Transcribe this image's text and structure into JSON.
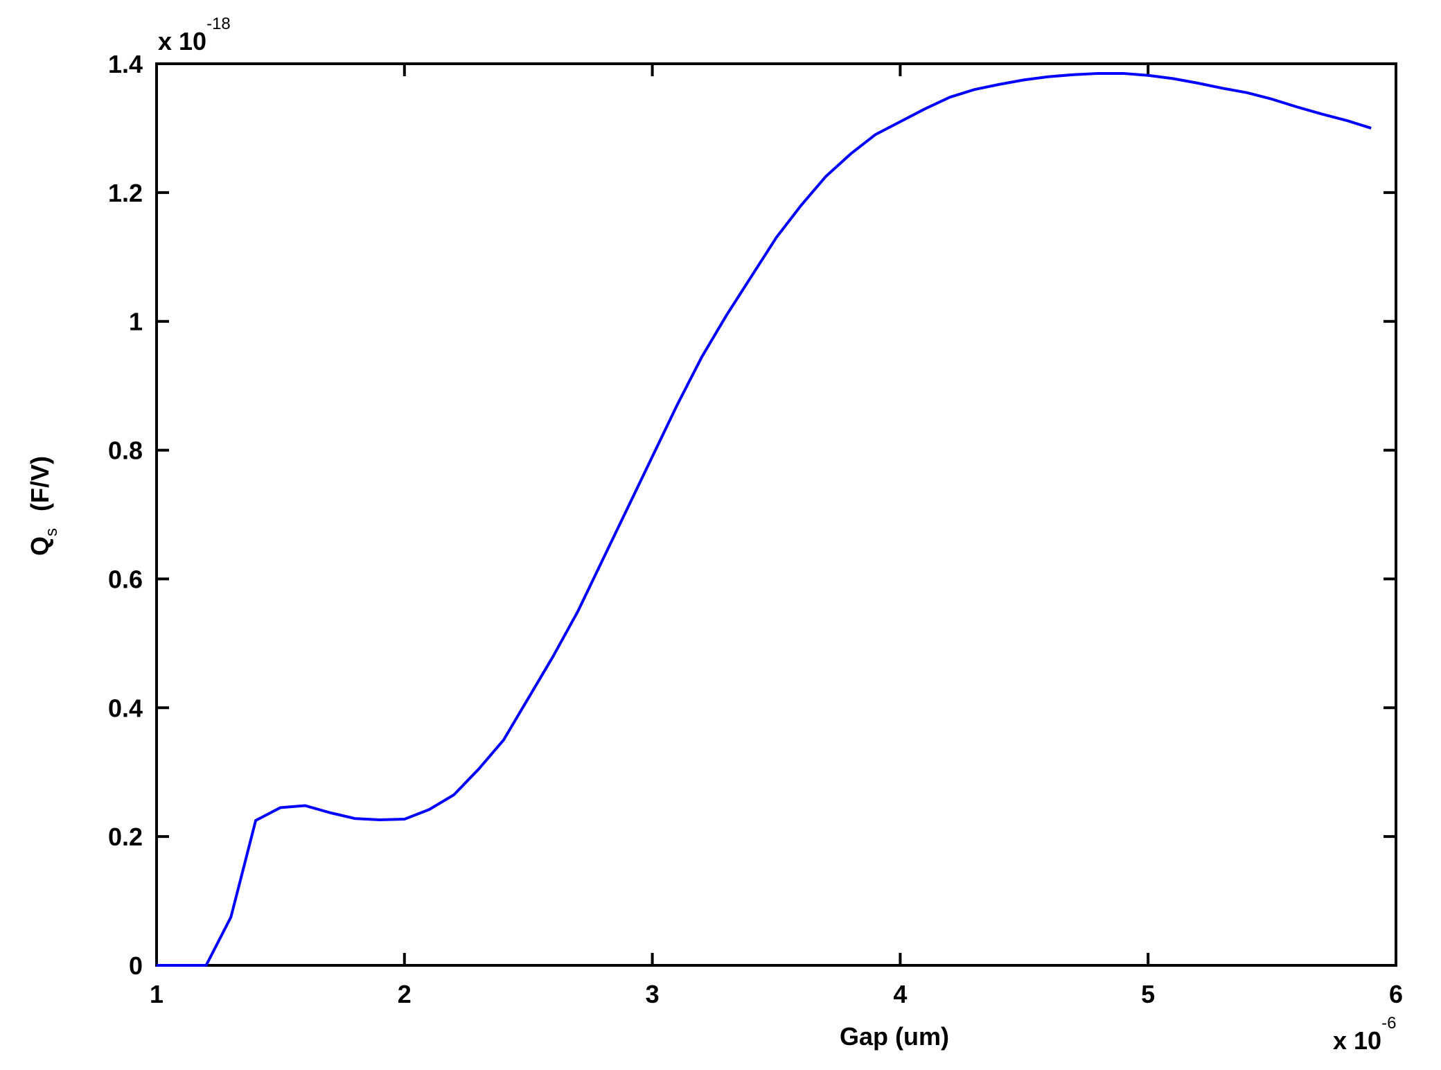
{
  "chart_data": {
    "type": "line",
    "xlabel": "Gap (um)",
    "ylabel": {
      "main": "Q",
      "sub": "s",
      "unit": "(F/V)"
    },
    "x_multiplier": {
      "base": "x 10",
      "exponent": "-6"
    },
    "y_multiplier": {
      "base": "x 10",
      "exponent": "-18"
    },
    "x": [
      1.0,
      1.1,
      1.2,
      1.3,
      1.4,
      1.5,
      1.6,
      1.7,
      1.8,
      1.9,
      2.0,
      2.1,
      2.2,
      2.3,
      2.4,
      2.5,
      2.6,
      2.7,
      2.8,
      2.9,
      3.0,
      3.1,
      3.2,
      3.3,
      3.4,
      3.5,
      3.6,
      3.7,
      3.8,
      3.9,
      4.0,
      4.1,
      4.2,
      4.3,
      4.4,
      4.5,
      4.6,
      4.7,
      4.8,
      4.9,
      5.0,
      5.1,
      5.2,
      5.3,
      5.4,
      5.5,
      5.6,
      5.7,
      5.8,
      5.9
    ],
    "series": [
      {
        "color": "#0000ff",
        "values": [
          0,
          0,
          0,
          0.075,
          0.225,
          0.245,
          0.248,
          0.237,
          0.228,
          0.226,
          0.227,
          0.242,
          0.265,
          0.305,
          0.35,
          0.415,
          0.48,
          0.55,
          0.63,
          0.71,
          0.79,
          0.87,
          0.945,
          1.01,
          1.07,
          1.13,
          1.18,
          1.225,
          1.26,
          1.29,
          1.31,
          1.33,
          1.348,
          1.36,
          1.368,
          1.375,
          1.38,
          1.383,
          1.385,
          1.385,
          1.382,
          1.377,
          1.37,
          1.362,
          1.355,
          1.345,
          1.333,
          1.322,
          1.312,
          1.3
        ]
      }
    ],
    "xlim": [
      1,
      6
    ],
    "xticks": [
      1,
      2,
      3,
      4,
      5,
      6
    ],
    "ylim": [
      0,
      1.4
    ],
    "yticks": [
      0,
      0.2,
      0.4,
      0.6,
      0.8,
      1,
      1.2,
      1.4
    ]
  }
}
